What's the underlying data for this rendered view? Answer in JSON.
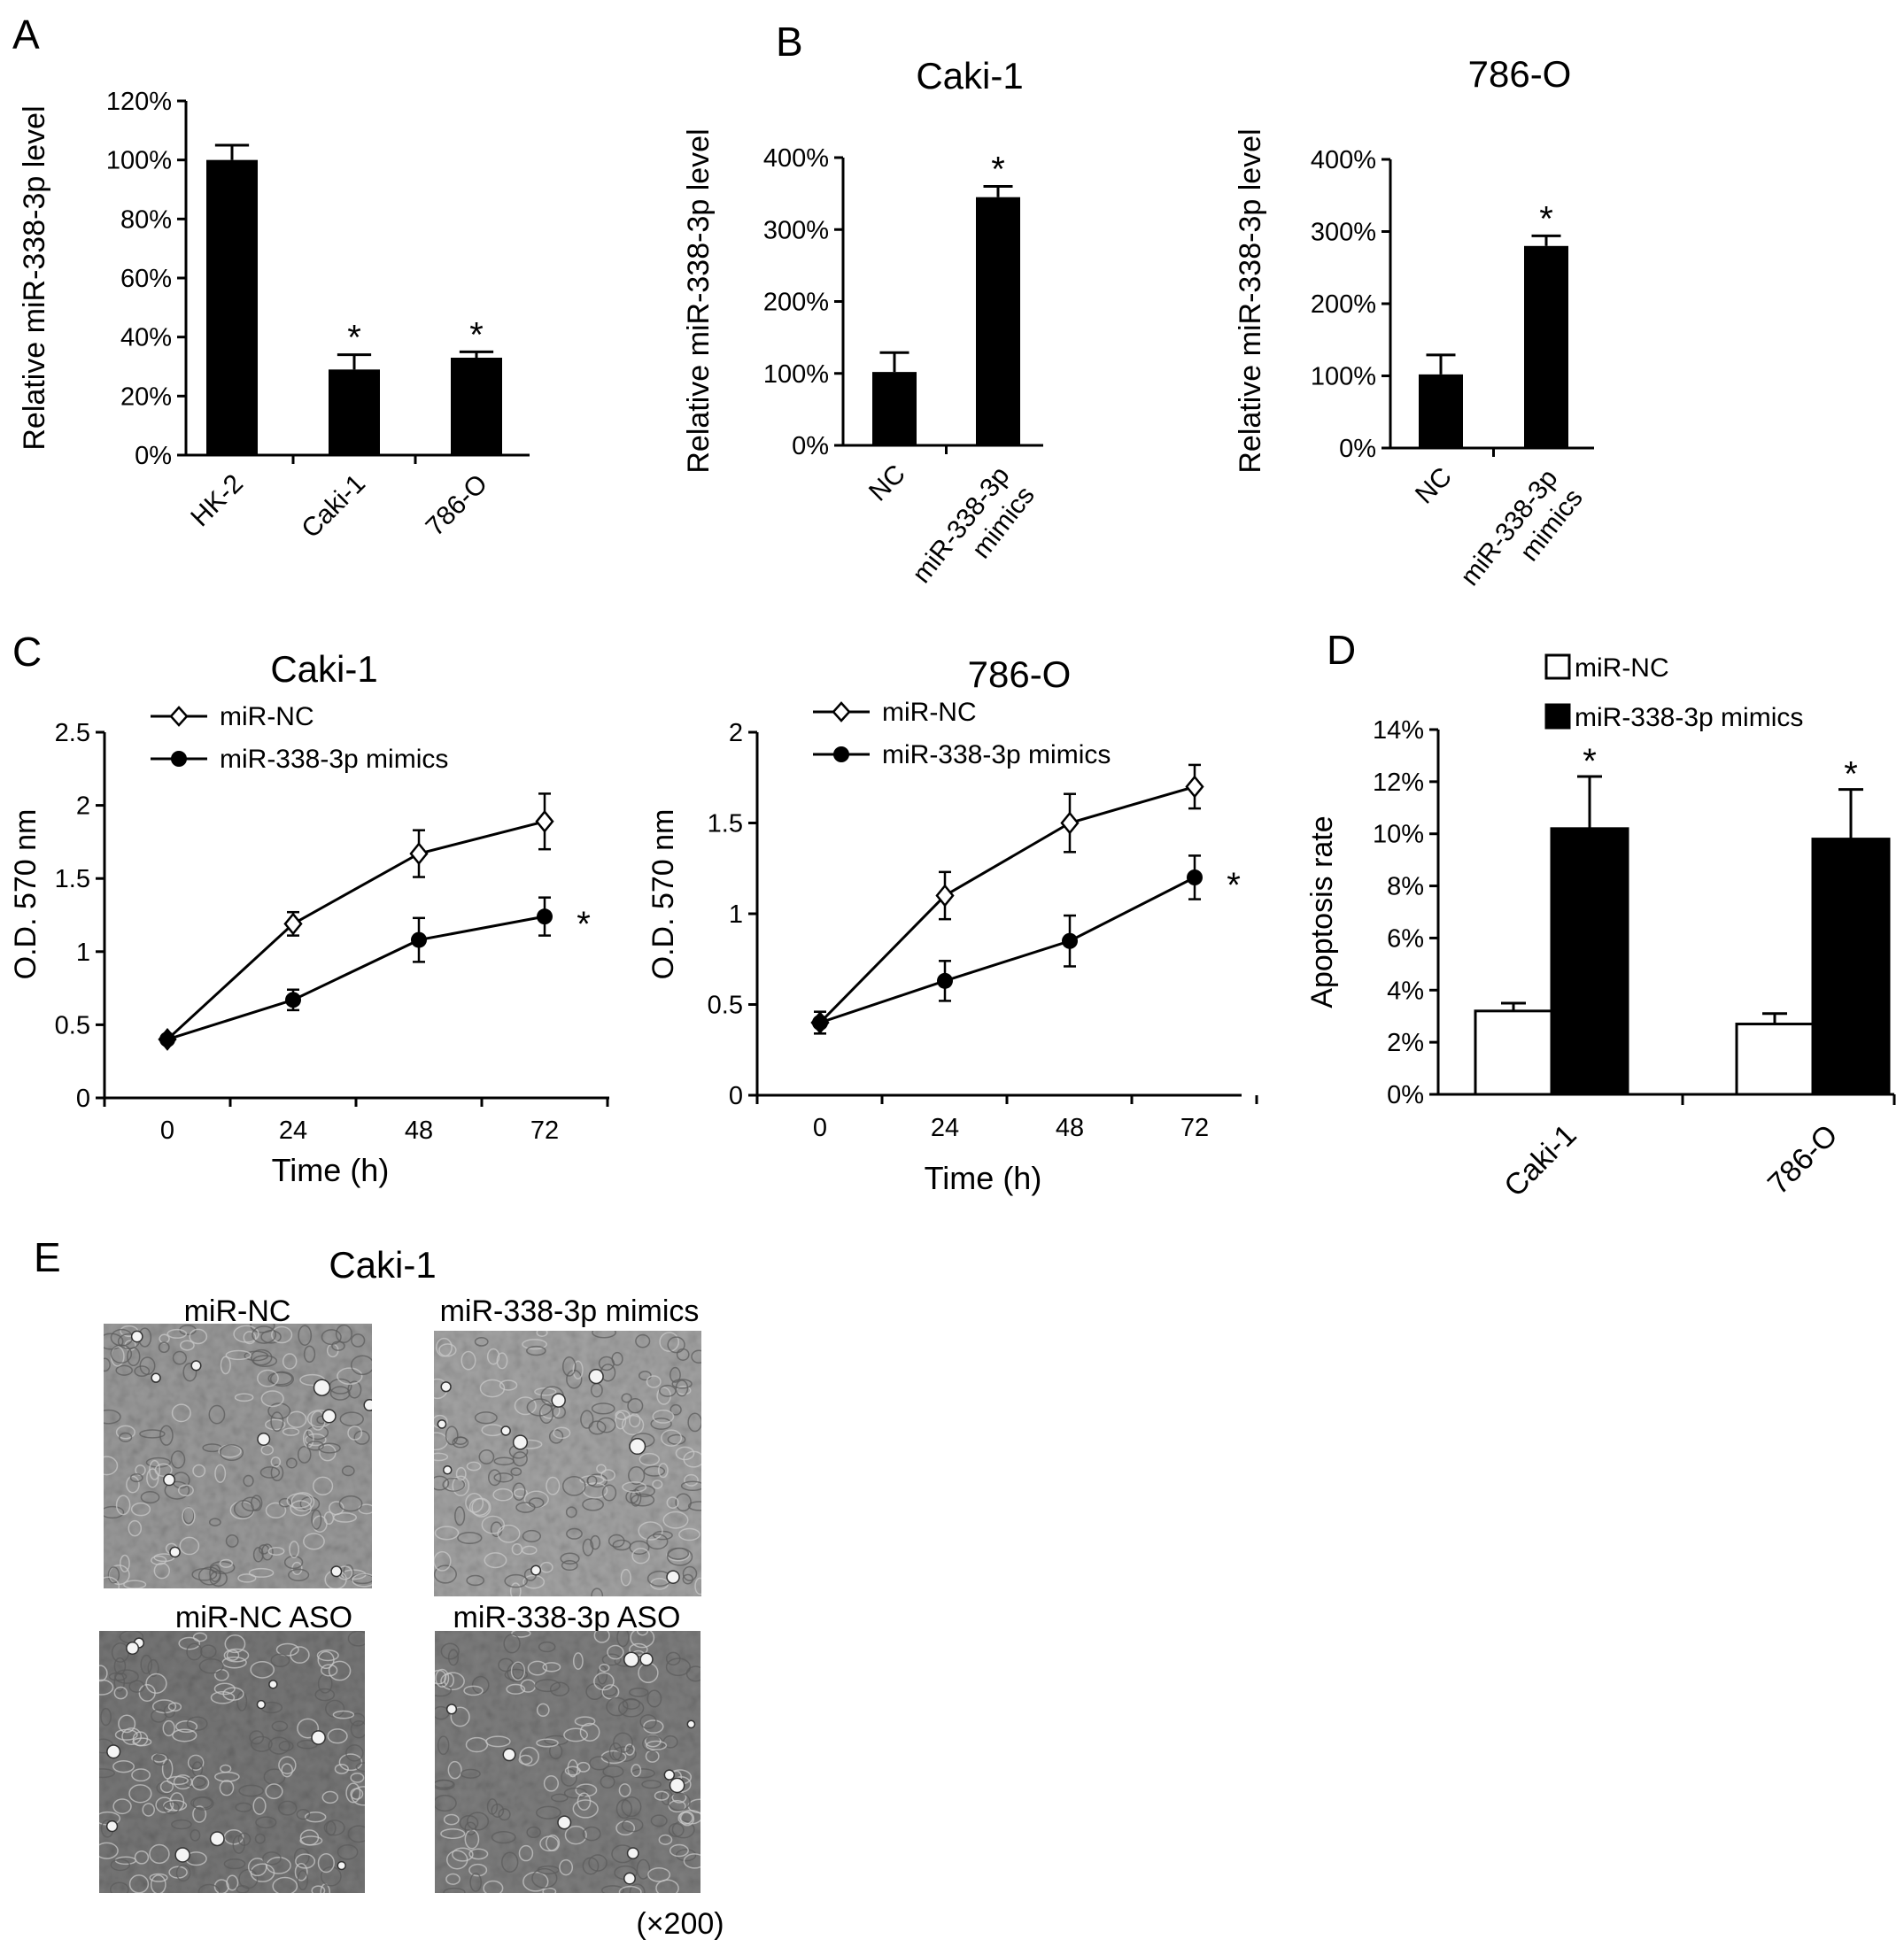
{
  "panel_letters": {
    "A": "A",
    "B": "B",
    "C": "C",
    "D": "D",
    "E": "E"
  },
  "colors": {
    "ink": "#000000",
    "paper": "#ffffff"
  },
  "chart_data": [
    {
      "id": "A",
      "type": "bar",
      "ylabel": "Relative miR-338-3p level",
      "ylim": [
        0,
        120
      ],
      "yticks": [
        "0%",
        "20%",
        "40%",
        "60%",
        "80%",
        "100%",
        "120%"
      ],
      "categories": [
        "HK-2",
        "Caki-1",
        "786-O"
      ],
      "values": [
        100,
        29,
        33
      ],
      "errors": [
        5,
        5,
        2
      ],
      "significance": [
        "",
        "*",
        "*"
      ]
    },
    {
      "id": "B1",
      "type": "bar",
      "title": "Caki-1",
      "ylabel": "Relative  miR-338-3p level",
      "ylim": [
        0,
        400
      ],
      "yticks": [
        "0%",
        "100%",
        "200%",
        "300%",
        "400%"
      ],
      "categories": [
        "NC",
        "miR-338-3p mimics"
      ],
      "values": [
        102,
        345
      ],
      "errors": [
        27,
        15
      ],
      "significance": [
        "",
        "*"
      ]
    },
    {
      "id": "B2",
      "type": "bar",
      "title": "786-O",
      "ylabel": "Relative  miR-338-3p level",
      "ylim": [
        0,
        400
      ],
      "yticks": [
        "0%",
        "100%",
        "200%",
        "300%",
        "400%"
      ],
      "categories": [
        "NC",
        "miR-338-3p mimics"
      ],
      "values": [
        102,
        280
      ],
      "errors": [
        27,
        14
      ],
      "significance": [
        "",
        "*"
      ]
    },
    {
      "id": "C1",
      "type": "line",
      "title": "Caki-1",
      "xlabel": "Time (h)",
      "ylabel": "O.D. 570 nm",
      "x": [
        0,
        24,
        48,
        72
      ],
      "ylim": [
        0,
        2.5
      ],
      "yticks": [
        "0",
        "0.5",
        "1",
        "1.5",
        "2",
        "2.5"
      ],
      "series": [
        {
          "name": "miR-NC",
          "marker": "open-diamond",
          "values": [
            0.4,
            1.19,
            1.67,
            1.89
          ],
          "errors": [
            0.02,
            0.08,
            0.16,
            0.19
          ]
        },
        {
          "name": "miR-338-3p mimics",
          "marker": "filled-circle",
          "values": [
            0.4,
            0.67,
            1.08,
            1.24
          ],
          "errors": [
            0.02,
            0.07,
            0.15,
            0.13
          ],
          "significance": "*"
        }
      ]
    },
    {
      "id": "C2",
      "type": "line",
      "title": "786-O",
      "xlabel": "Time (h)",
      "ylabel": "O.D. 570 nm",
      "x": [
        0,
        24,
        48,
        72
      ],
      "ylim": [
        0,
        2
      ],
      "yticks": [
        "0",
        "0.5",
        "1",
        "1.5",
        "2"
      ],
      "series": [
        {
          "name": "miR-NC",
          "marker": "open-diamond",
          "values": [
            0.4,
            1.1,
            1.5,
            1.7
          ],
          "errors": [
            0.06,
            0.13,
            0.16,
            0.12
          ]
        },
        {
          "name": "miR-338-3p mimics",
          "marker": "filled-circle",
          "values": [
            0.4,
            0.63,
            0.85,
            1.2
          ],
          "errors": [
            0.06,
            0.11,
            0.14,
            0.12
          ],
          "significance": "*"
        }
      ]
    },
    {
      "id": "D",
      "type": "bar",
      "ylabel": "Apoptosis rate",
      "ylim": [
        0,
        14
      ],
      "yticks": [
        "0%",
        "2%",
        "4%",
        "6%",
        "8%",
        "10%",
        "12%",
        "14%"
      ],
      "categories": [
        "Caki-1",
        "786-O"
      ],
      "series": [
        {
          "name": "miR-NC",
          "fill": "#ffffff",
          "values": [
            3.2,
            2.7
          ],
          "errors": [
            0.3,
            0.4
          ]
        },
        {
          "name": "miR-338-3p mimics",
          "fill": "#000000",
          "values": [
            10.2,
            9.8
          ],
          "errors": [
            2.0,
            1.9
          ],
          "significance": [
            "*",
            "*"
          ]
        }
      ]
    }
  ],
  "panel_e": {
    "title": "Caki-1",
    "magnification": "(×200)",
    "images": [
      {
        "label": "miR-NC",
        "seed": 3,
        "tone": "#9a9a9a"
      },
      {
        "label": "miR-338-3p mimics",
        "seed": 11,
        "tone": "#a4a4a4"
      },
      {
        "label": "miR-NC ASO",
        "seed": 23,
        "tone": "#777777"
      },
      {
        "label": "miR-338-3p ASO",
        "seed": 41,
        "tone": "#7e7e7e"
      }
    ]
  }
}
